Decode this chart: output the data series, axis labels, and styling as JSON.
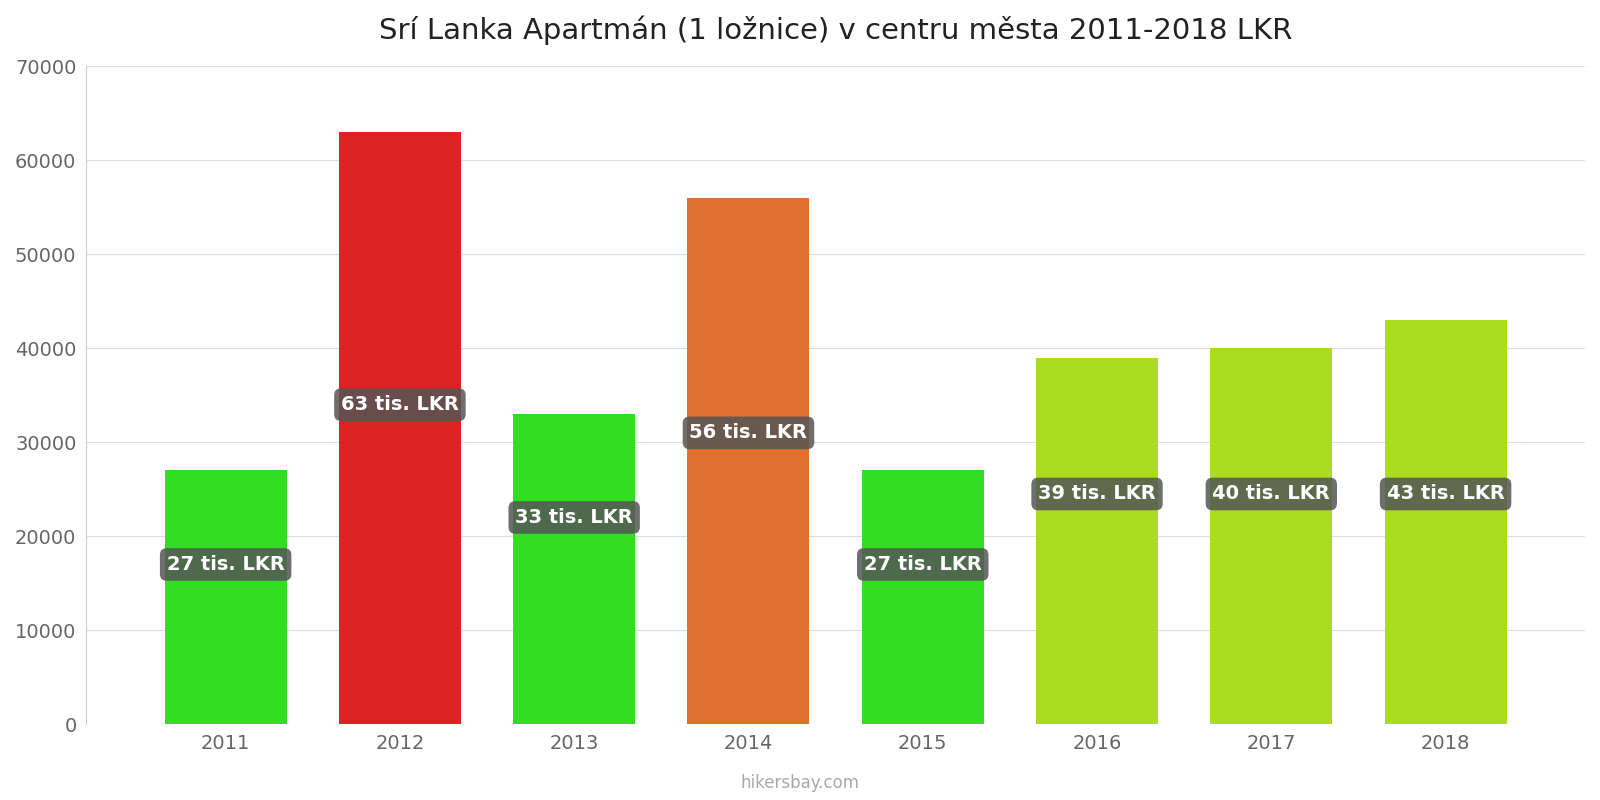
{
  "title": "Srí Lanka Apartmán (1 ložnice) v centru města 2011-2018 LKR",
  "years": [
    2011,
    2012,
    2013,
    2014,
    2015,
    2016,
    2017,
    2018
  ],
  "values": [
    27000,
    63000,
    33000,
    56000,
    27000,
    39000,
    40000,
    43000
  ],
  "labels": [
    "27 tis. LKR",
    "63 tis. LKR",
    "33 tis. LKR",
    "56 tis. LKR",
    "27 tis. LKR",
    "39 tis. LKR",
    "40 tis. LKR",
    "43 tis. LKR"
  ],
  "bar_colors": [
    "#33dd22",
    "#dd2222",
    "#33dd22",
    "#e07030",
    "#33dd22",
    "#aadd22",
    "#aadd22",
    "#aadd22"
  ],
  "label_y_offsets": [
    17000,
    34000,
    22000,
    31000,
    17000,
    24500,
    24500,
    24500
  ],
  "ylim": [
    0,
    70000
  ],
  "yticks": [
    0,
    10000,
    20000,
    30000,
    40000,
    50000,
    60000,
    70000
  ],
  "background_color": "#ffffff",
  "watermark": "hikersbay.com",
  "title_fontsize": 21,
  "bar_width": 0.7,
  "xlim_left": 2010.2,
  "xlim_right": 2018.8
}
